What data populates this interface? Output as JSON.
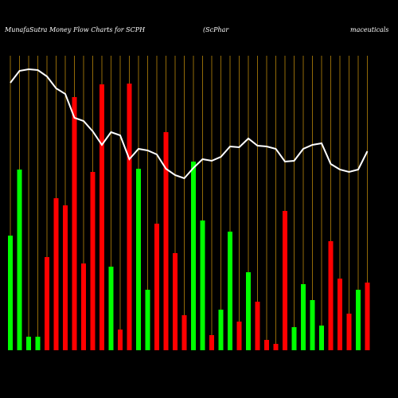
{
  "chart_data": {
    "type": "bar",
    "title": "MunafaSutra  Money Flow  Charts for SCPH",
    "subtitle_parts": [
      "(ScPhar",
      "maceuticals"
    ],
    "categories": [
      null,
      null,
      null,
      null,
      null,
      null,
      null,
      null,
      null,
      null,
      null,
      null,
      null,
      null,
      null,
      null,
      null,
      null,
      null,
      null,
      null,
      null,
      null,
      null,
      null,
      null,
      null,
      null,
      null,
      null,
      null,
      null,
      null,
      null,
      null,
      null,
      null,
      null,
      null,
      null
    ],
    "values": [
      144,
      227,
      17,
      17,
      117,
      191,
      182,
      318,
      109,
      224,
      334,
      105,
      26,
      335,
      228,
      76,
      159,
      274,
      122,
      44,
      237,
      163,
      19,
      51,
      149,
      36,
      98,
      61,
      13,
      8,
      175,
      29,
      83,
      63,
      31,
      137,
      90,
      46,
      76,
      85
    ],
    "colors": [
      "#00ff00",
      "#00ff00",
      "#00ff00",
      "#00ff00",
      "#ff0000",
      "#ff0000",
      "#ff0000",
      "#ff0000",
      "#ff0000",
      "#ff0000",
      "#ff0000",
      "#00ff00",
      "#ff0000",
      "#ff0000",
      "#00ff00",
      "#00ff00",
      "#ff0000",
      "#ff0000",
      "#ff0000",
      "#ff0000",
      "#00ff00",
      "#00ff00",
      "#ff0000",
      "#00ff00",
      "#00ff00",
      "#ff0000",
      "#00ff00",
      "#ff0000",
      "#ff0000",
      "#ff0000",
      "#ff0000",
      "#00ff00",
      "#00ff00",
      "#00ff00",
      "#00ff00",
      "#ff0000",
      "#ff0000",
      "#ff0000",
      "#00ff00",
      "#ff0000"
    ],
    "line_values": [
      336,
      351,
      353,
      352,
      344,
      329,
      322,
      292,
      288,
      275,
      258,
      274,
      270,
      240,
      253,
      251,
      246,
      228,
      220,
      216,
      229,
      240,
      238,
      243,
      256,
      255,
      266,
      257,
      256,
      253,
      237,
      238,
      253,
      258,
      260,
      234,
      227,
      224,
      227,
      250
    ],
    "line_color": "#ffffff",
    "grid_color": "#b8860b",
    "ylim": [
      0,
      370
    ]
  }
}
